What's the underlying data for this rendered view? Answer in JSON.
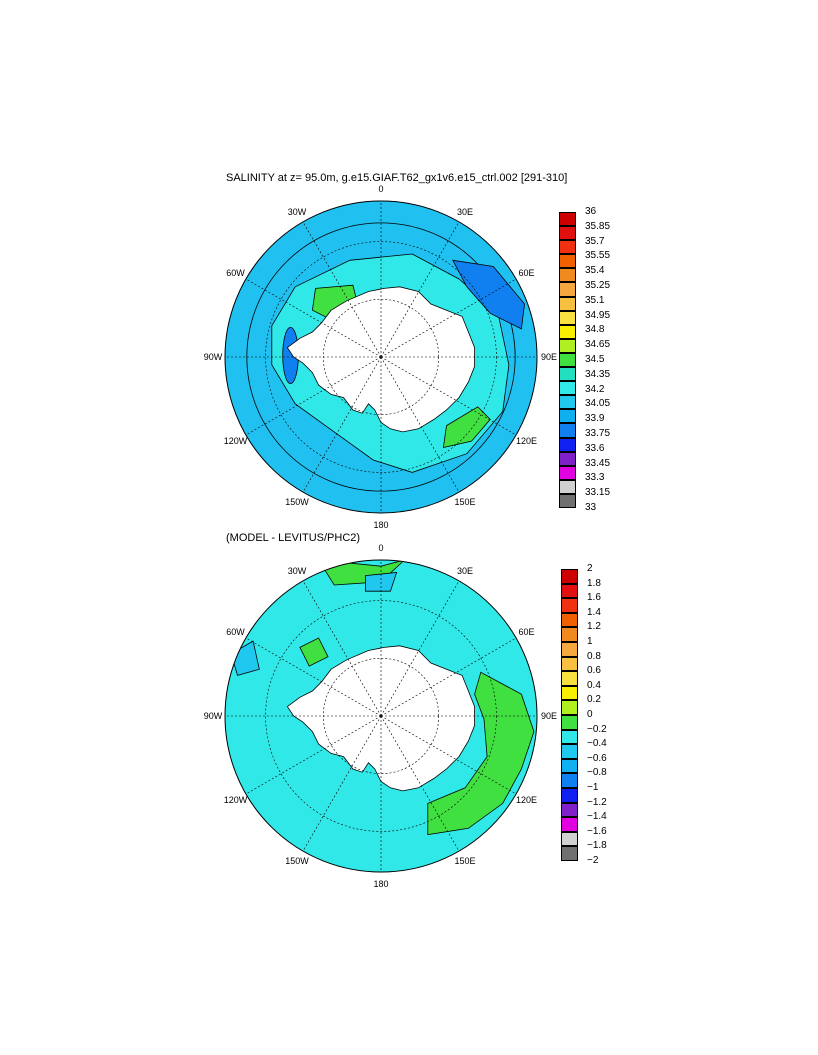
{
  "panels": [
    {
      "title": "SALINITY at z=  95.0m, g.e15.GIAF.T62_gx1v6.e15_ctrl.002 [291-310]",
      "lon_labels": [
        "0",
        "30E",
        "60E",
        "90E",
        "120E",
        "150E",
        "180",
        "150W",
        "120W",
        "90W",
        "60W",
        "30W"
      ],
      "colorbar": {
        "levels": [
          "36",
          "35.85",
          "35.7",
          "35.55",
          "35.4",
          "35.25",
          "35.1",
          "34.95",
          "34.8",
          "34.65",
          "34.5",
          "34.35",
          "34.2",
          "34.05",
          "33.9",
          "33.75",
          "33.6",
          "33.45",
          "33.3",
          "33.15",
          "33"
        ],
        "colors": [
          "#cc0000",
          "#e01010",
          "#f03010",
          "#f06000",
          "#f08a1e",
          "#f5a840",
          "#f8c040",
          "#f8e040",
          "#f8f000",
          "#b0f020",
          "#40e040",
          "#20e0c0",
          "#30e8e8",
          "#20c8f0",
          "#10b0f0",
          "#1080f0",
          "#1020f0",
          "#8020c8",
          "#e000e0",
          "#d0d0d0",
          "#707070"
        ]
      },
      "fills": {
        "ocean": "#20c0f0",
        "shelf": "#30e8e8",
        "high": "#40e040",
        "low": "#1080f0",
        "land": "#ffffff"
      }
    },
    {
      "title": "(MODEL - LEVITUS/PHC2)",
      "lon_labels": [
        "0",
        "30E",
        "60E",
        "90E",
        "120E",
        "150E",
        "180",
        "150W",
        "120W",
        "90W",
        "60W",
        "30W"
      ],
      "colorbar": {
        "levels": [
          "2",
          "1.8",
          "1.6",
          "1.4",
          "1.2",
          "1",
          "0.8",
          "0.6",
          "0.4",
          "0.2",
          "0",
          "−0.2",
          "−0.4",
          "−0.6",
          "−0.8",
          "−1",
          "−1.2",
          "−1.4",
          "−1.6",
          "−1.8",
          "−2"
        ],
        "colors": [
          "#cc0000",
          "#e01010",
          "#f03010",
          "#f06000",
          "#f08a1e",
          "#f5a840",
          "#f8c040",
          "#f8e040",
          "#f8f000",
          "#b0f020",
          "#40e040",
          "#30e8e8",
          "#20c8f0",
          "#10b0f0",
          "#1080f0",
          "#1020f0",
          "#8020c8",
          "#e000e0",
          "#d0d0d0",
          "#707070"
        ]
      },
      "fills": {
        "ocean": "#30e8e8",
        "pos": "#40e040",
        "neg": "#20c8f0",
        "land": "#ffffff"
      }
    }
  ]
}
